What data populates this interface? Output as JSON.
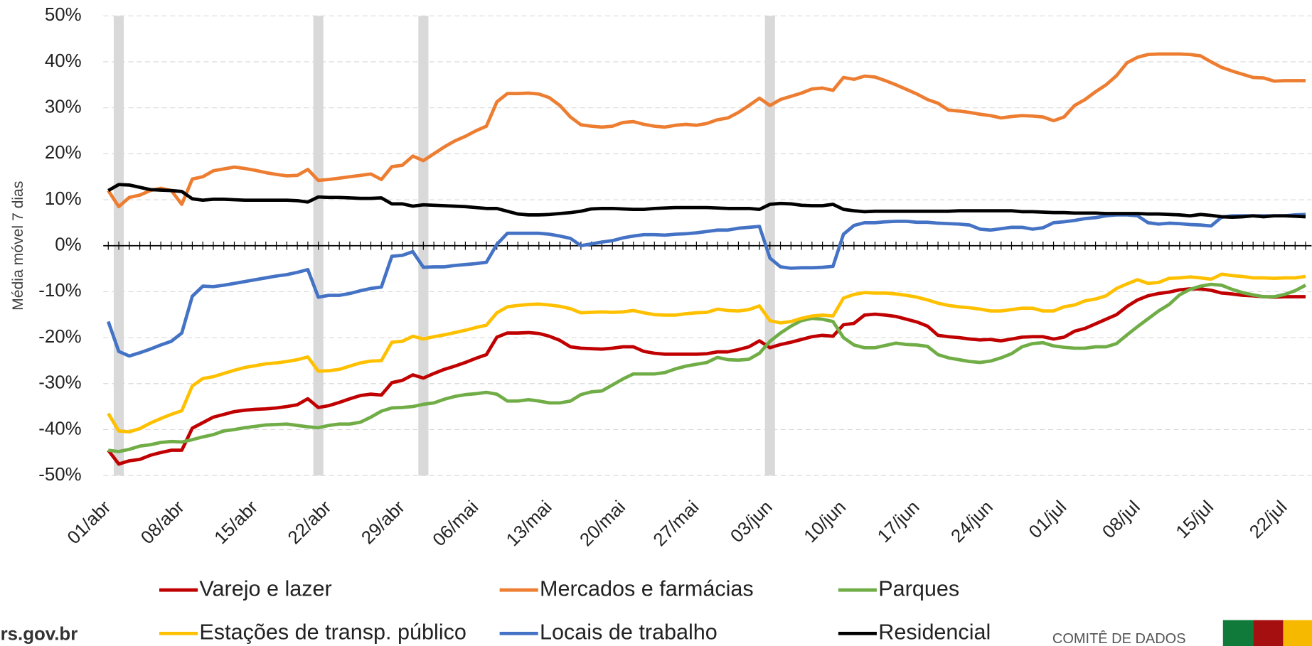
{
  "chart_data": {
    "type": "line",
    "y_label": "Média móvel 7 dias",
    "ylim": [
      -50,
      50
    ],
    "yticks": [
      {
        "value": -50,
        "label": "-50%"
      },
      {
        "value": -40,
        "label": "-40%"
      },
      {
        "value": -30,
        "label": "-30%"
      },
      {
        "value": -20,
        "label": "-20%"
      },
      {
        "value": -10,
        "label": "-10%"
      },
      {
        "value": 0,
        "label": "0%"
      },
      {
        "value": 10,
        "label": "10%"
      },
      {
        "value": 20,
        "label": "20%"
      },
      {
        "value": 30,
        "label": "30%"
      },
      {
        "value": 40,
        "label": "40%"
      },
      {
        "value": 50,
        "label": "50%"
      }
    ],
    "grid": true,
    "legend": "bottom",
    "highlight_indices": [
      1,
      20,
      30,
      63
    ],
    "highlight_color": "#d9d9d9",
    "categories": [
      "01/abr",
      null,
      null,
      null,
      null,
      null,
      null,
      "08/abr",
      null,
      null,
      null,
      null,
      null,
      null,
      "15/abr",
      null,
      null,
      null,
      null,
      null,
      null,
      "22/abr",
      null,
      null,
      null,
      null,
      null,
      null,
      "29/abr",
      null,
      null,
      null,
      null,
      null,
      null,
      "06/mai",
      null,
      null,
      null,
      null,
      null,
      null,
      "13/mai",
      null,
      null,
      null,
      null,
      null,
      null,
      "20/mai",
      null,
      null,
      null,
      null,
      null,
      null,
      "27/mai",
      null,
      null,
      null,
      null,
      null,
      null,
      "03/jun",
      null,
      null,
      null,
      null,
      null,
      null,
      "10/jun",
      null,
      null,
      null,
      null,
      null,
      null,
      "17/jun",
      null,
      null,
      null,
      null,
      null,
      null,
      "24/jun",
      null,
      null,
      null,
      null,
      null,
      null,
      "01/jul",
      null,
      null,
      null,
      null,
      null,
      null,
      "08/jul",
      null,
      null,
      null,
      null,
      null,
      null,
      "15/jul",
      null,
      null,
      null,
      null,
      null,
      null,
      "22/jul",
      null,
      null
    ],
    "series": [
      {
        "name": "Varejo e lazer",
        "color": "#c00000",
        "values": [
          -44.5,
          -47.5,
          -46.8,
          -46.5,
          -45.6,
          -45,
          -44.5,
          -44.5,
          -39.7,
          -38.5,
          -37.3,
          -36.7,
          -36.1,
          -35.8,
          -35.6,
          -35.5,
          -35.3,
          -35,
          -34.6,
          -33.3,
          -35.2,
          -34.8,
          -34.1,
          -33.3,
          -32.6,
          -32.3,
          -32.5,
          -29.8,
          -29.3,
          -28.1,
          -28.8,
          -27.8,
          -26.9,
          -26.2,
          -25.4,
          -24.5,
          -23.7,
          -19.9,
          -19,
          -19,
          -18.9,
          -19.1,
          -19.7,
          -20.6,
          -22,
          -22.3,
          -22.4,
          -22.5,
          -22.3,
          -22,
          -22,
          -23,
          -23.4,
          -23.6,
          -23.6,
          -23.6,
          -23.6,
          -23.5,
          -23.1,
          -23.1,
          -22.6,
          -22,
          -20.7,
          -22.2,
          -21.5,
          -21,
          -20.4,
          -19.8,
          -19.5,
          -19.7,
          -17.2,
          -16.9,
          -15.1,
          -14.9,
          -15.1,
          -15.4,
          -16,
          -16.6,
          -17.5,
          -19.5,
          -19.8,
          -20,
          -20.3,
          -20.5,
          -20.4,
          -20.7,
          -20.3,
          -19.9,
          -19.8,
          -19.8,
          -20.3,
          -19.9,
          -18.6,
          -18,
          -17,
          -16,
          -15,
          -13.2,
          -11.8,
          -10.9,
          -10.4,
          -10.1,
          -9.6,
          -9.4,
          -9.4,
          -9.7,
          -10.3,
          -10.5,
          -10.8,
          -10.9,
          -11.1,
          -11.2,
          -11.1,
          -11.1,
          -11.1
        ]
      },
      {
        "name": "Mercados e farmácias",
        "color": "#ed7d31",
        "values": [
          12,
          8.5,
          10.5,
          11,
          12,
          12.5,
          12,
          9,
          14.5,
          15,
          16.3,
          16.7,
          17.1,
          16.8,
          16.4,
          15.9,
          15.5,
          15.2,
          15.3,
          16.6,
          14.2,
          14.4,
          14.7,
          15,
          15.3,
          15.6,
          14.4,
          17.2,
          17.5,
          19.5,
          18.5,
          20,
          21.5,
          22.8,
          23.8,
          25,
          26,
          31.3,
          33.1,
          33.1,
          33.2,
          33,
          32.2,
          30.5,
          28,
          26.3,
          26,
          25.8,
          26,
          26.8,
          27,
          26.4,
          26,
          25.8,
          26.2,
          26.4,
          26.2,
          26.6,
          27.4,
          27.8,
          29,
          30.5,
          32.1,
          30.5,
          31.8,
          32.5,
          33.2,
          34.1,
          34.3,
          33.8,
          36.6,
          36.2,
          36.9,
          36.7,
          35.9,
          35,
          34,
          33,
          31.8,
          31,
          29.5,
          29.3,
          29,
          28.6,
          28.3,
          27.8,
          28.1,
          28.3,
          28.2,
          28,
          27.2,
          28,
          30.5,
          31.8,
          33.5,
          35,
          37,
          39.8,
          41,
          41.6,
          41.7,
          41.7,
          41.7,
          41.6,
          41.3,
          40,
          38.8,
          38,
          37.3,
          36.6,
          36.5,
          35.8,
          35.9,
          35.9,
          35.9
        ]
      },
      {
        "name": "Parques",
        "color": "#70ad47",
        "values": [
          -44.5,
          -44.8,
          -44.3,
          -43.6,
          -43.3,
          -42.8,
          -42.6,
          -42.7,
          -42.2,
          -41.6,
          -41.1,
          -40.3,
          -40,
          -39.6,
          -39.3,
          -39,
          -38.9,
          -38.8,
          -39.1,
          -39.4,
          -39.6,
          -39.1,
          -38.8,
          -38.8,
          -38.4,
          -37.3,
          -36,
          -35.3,
          -35.2,
          -35,
          -34.5,
          -34.2,
          -33.4,
          -32.8,
          -32.4,
          -32.2,
          -31.9,
          -32.3,
          -33.8,
          -33.8,
          -33.5,
          -33.8,
          -34.2,
          -34.2,
          -33.8,
          -32.4,
          -31.8,
          -31.6,
          -30.3,
          -29,
          -27.9,
          -27.9,
          -27.9,
          -27.6,
          -26.8,
          -26.2,
          -25.8,
          -25.4,
          -24.3,
          -24.8,
          -24.9,
          -24.7,
          -23.4,
          -20.8,
          -19,
          -17.5,
          -16.3,
          -15.8,
          -16,
          -16.5,
          -20,
          -21.6,
          -22.2,
          -22.2,
          -21.7,
          -21.2,
          -21.5,
          -21.6,
          -21.9,
          -23.7,
          -24.4,
          -24.8,
          -25.2,
          -25.4,
          -25.1,
          -24.4,
          -23.5,
          -22,
          -21.3,
          -21.1,
          -21.8,
          -22.1,
          -22.3,
          -22.3,
          -22,
          -22,
          -21.3,
          -19.4,
          -17.6,
          -15.9,
          -14.2,
          -12.8,
          -10.7,
          -9.5,
          -8.8,
          -8.4,
          -8.6,
          -9.5,
          -10.2,
          -10.7,
          -11.1,
          -11.1,
          -10.6,
          -9.8,
          -8.6
        ]
      },
      {
        "name": "Estações de transp. público",
        "color": "#ffc000",
        "values": [
          -36.5,
          -40.3,
          -40.5,
          -39.8,
          -38.6,
          -37.6,
          -36.7,
          -35.9,
          -30.5,
          -28.9,
          -28.5,
          -27.8,
          -27.1,
          -26.5,
          -26.1,
          -25.7,
          -25.5,
          -25.2,
          -24.8,
          -24.2,
          -27.3,
          -27.2,
          -26.9,
          -26.2,
          -25.5,
          -25.1,
          -25,
          -21,
          -20.8,
          -19.7,
          -20.3,
          -19.8,
          -19.4,
          -18.9,
          -18.4,
          -17.8,
          -17.3,
          -14.6,
          -13.3,
          -13,
          -12.8,
          -12.7,
          -12.9,
          -13.2,
          -13.7,
          -14.6,
          -14.5,
          -14.4,
          -14.5,
          -14.4,
          -14.1,
          -14.6,
          -15,
          -15.1,
          -15.1,
          -14.8,
          -14.6,
          -14.5,
          -13.8,
          -14.1,
          -14.2,
          -13.9,
          -13.1,
          -16.3,
          -16.8,
          -16.5,
          -15.8,
          -15.3,
          -15.1,
          -15.3,
          -11.4,
          -10.6,
          -10.2,
          -10.3,
          -10.3,
          -10.5,
          -10.8,
          -11.2,
          -11.8,
          -12.5,
          -13,
          -13.3,
          -13.5,
          -13.8,
          -14.2,
          -14.2,
          -13.9,
          -13.6,
          -13.6,
          -14.2,
          -14.2,
          -13.3,
          -12.9,
          -12,
          -11.6,
          -10.9,
          -9.3,
          -8.3,
          -7.4,
          -8.2,
          -8,
          -7.1,
          -7,
          -6.8,
          -7,
          -7.3,
          -6.2,
          -6.5,
          -6.7,
          -7,
          -7,
          -7.1,
          -7,
          -7,
          -6.7
        ]
      },
      {
        "name": "Locais de trabalho",
        "color": "#4472c4",
        "values": [
          -16.5,
          -23,
          -24,
          -23.3,
          -22.5,
          -21.6,
          -20.8,
          -19,
          -11,
          -8.8,
          -8.9,
          -8.6,
          -8.2,
          -7.8,
          -7.4,
          -7,
          -6.6,
          -6.3,
          -5.8,
          -5.2,
          -11.2,
          -10.8,
          -10.8,
          -10.4,
          -9.8,
          -9.3,
          -9,
          -2.3,
          -2.1,
          -1.3,
          -4.7,
          -4.6,
          -4.6,
          -4.3,
          -4.1,
          -3.9,
          -3.6,
          0.3,
          2.7,
          2.7,
          2.7,
          2.7,
          2.5,
          2.1,
          1.6,
          0,
          0.4,
          0.8,
          1.1,
          1.7,
          2.1,
          2.4,
          2.4,
          2.3,
          2.5,
          2.6,
          2.8,
          3.1,
          3.4,
          3.4,
          3.8,
          4,
          4.2,
          -2.7,
          -4.6,
          -4.9,
          -4.8,
          -4.8,
          -4.7,
          -4.5,
          2.5,
          4.4,
          5,
          5,
          5.2,
          5.3,
          5.3,
          5.1,
          5.1,
          4.9,
          4.8,
          4.7,
          4.5,
          3.6,
          3.4,
          3.7,
          4,
          4,
          3.6,
          3.9,
          5,
          5.2,
          5.5,
          5.9,
          6.1,
          6.5,
          6.7,
          6.7,
          6.5,
          5,
          4.7,
          4.9,
          4.8,
          4.6,
          4.5,
          4.3,
          6.2,
          6.5,
          6.5,
          6.5,
          6.5,
          6.5,
          6.5,
          6.7,
          6.8
        ]
      },
      {
        "name": "Residencial",
        "color": "#000000",
        "values": [
          12,
          13.3,
          13.2,
          12.7,
          12.2,
          12.1,
          12,
          11.8,
          10.2,
          9.9,
          10.1,
          10.1,
          10,
          9.9,
          9.9,
          9.9,
          9.9,
          9.9,
          9.8,
          9.5,
          10.6,
          10.5,
          10.5,
          10.4,
          10.3,
          10.3,
          10.4,
          9.1,
          9.1,
          8.6,
          8.9,
          8.8,
          8.7,
          8.6,
          8.5,
          8.3,
          8.1,
          8.1,
          7.5,
          6.9,
          6.7,
          6.7,
          6.8,
          7,
          7.2,
          7.5,
          8,
          8.1,
          8.1,
          8,
          7.9,
          7.9,
          8.1,
          8.2,
          8.3,
          8.3,
          8.3,
          8.3,
          8.2,
          8.1,
          8.1,
          8.1,
          7.9,
          9,
          9.2,
          9.1,
          8.8,
          8.7,
          8.7,
          9,
          7.9,
          7.6,
          7.4,
          7.5,
          7.5,
          7.5,
          7.5,
          7.5,
          7.5,
          7.5,
          7.5,
          7.6,
          7.6,
          7.6,
          7.6,
          7.6,
          7.6,
          7.4,
          7.4,
          7.3,
          7.2,
          7.2,
          7.1,
          7.1,
          7.1,
          7,
          7,
          7,
          7,
          6.9,
          6.9,
          6.8,
          6.7,
          6.5,
          6.8,
          6.6,
          6.3,
          6.2,
          6.3,
          6.5,
          6.3,
          6.5,
          6.5,
          6.4,
          6.3
        ]
      }
    ],
    "source": "rs.gov.br",
    "brand": "COMITÊ DE DADOS",
    "brand_colors": [
      "#0f7a3a",
      "#a50f0f",
      "#f6b900"
    ]
  }
}
